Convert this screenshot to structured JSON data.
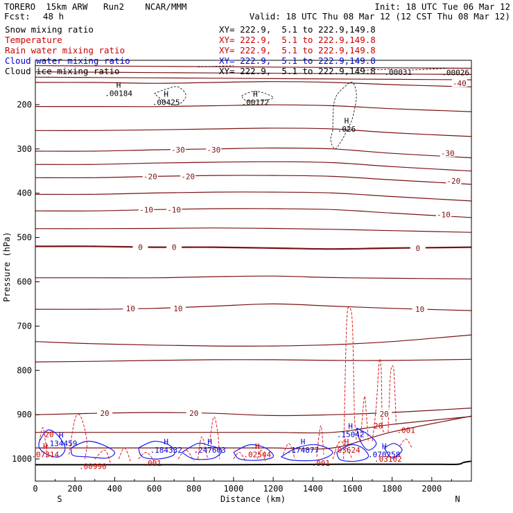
{
  "header": {
    "model": "TORERO  15km ARW   Run2    NCAR/MMM",
    "init": "Init: 18 UTC Tue 06 Mar 12",
    "fcst_label": "Fcst:",
    "fcst_value": "48 h",
    "valid": "Valid: 18 UTC Thu 08 Mar 12 (12 CST Thu 08 Mar 12)"
  },
  "legend": [
    {
      "label": "Snow mixing ratio",
      "xy": "XY= 222.9,  5.1 to 222.9,149.8",
      "color": "#000000"
    },
    {
      "label": "Temperature",
      "xy": "XY= 222.9,  5.1 to 222.9,149.8",
      "color": "#cc0000"
    },
    {
      "label": "Rain water mixing ratio",
      "xy": "XY= 222.9,  5.1 to 222.9,149.8",
      "color": "#cc0000"
    },
    {
      "label": "Cloud water mixing ratio",
      "xy": "XY= 222.9,  5.1 to 222.9,149.8",
      "color": "#0000cc"
    },
    {
      "label": "Cloud ice mixing ratio",
      "xy": "XY= 222.9,  5.1 to 222.9,149.8",
      "color": "#000000"
    }
  ],
  "chart_data": {
    "type": "line",
    "title": "Vertical cross section",
    "xlabel": "Distance (km)",
    "ylabel": "Pressure (hPa)",
    "xlim": [
      0,
      2200
    ],
    "ylim": [
      1050,
      100
    ],
    "x_ticks": [
      0,
      200,
      400,
      600,
      800,
      1000,
      1200,
      1400,
      1600,
      1800,
      2000
    ],
    "x_tick_labels": [
      "0",
      "200",
      "400",
      "600",
      "800",
      "1000",
      "1200",
      "1400",
      "1600",
      "1800",
      "2000"
    ],
    "y_ticks": [
      200,
      300,
      400,
      500,
      600,
      700,
      800,
      900,
      1000
    ],
    "y_tick_labels": [
      "200",
      "300",
      "400",
      "500",
      "600",
      "700",
      "800",
      "900",
      "1000"
    ],
    "direction_labels": {
      "left": "S",
      "right": "N"
    },
    "temperature_isotherms": [
      {
        "label": "-40",
        "pressure": [
          150,
          150,
          152,
          150,
          148,
          150,
          155,
          160
        ]
      },
      {
        "label": "-30",
        "pressure": [
          305,
          305,
          302,
          300,
          298,
          300,
          310,
          320
        ]
      },
      {
        "label": "-20",
        "pressure": [
          365,
          365,
          362,
          360,
          360,
          362,
          370,
          380
        ]
      },
      {
        "label": "-10",
        "pressure": [
          440,
          440,
          437,
          435,
          435,
          437,
          445,
          455
        ]
      },
      {
        "label": "0",
        "pressure": [
          520,
          520,
          522,
          522,
          524,
          526,
          524,
          522
        ]
      },
      {
        "label": "10",
        "pressure": [
          662,
          662,
          660,
          655,
          650,
          655,
          660,
          665
        ]
      },
      {
        "label": "20",
        "pressure": [
          900,
          897,
          895,
          897,
          902,
          900,
          895,
          885
        ]
      }
    ],
    "isotherm_x": [
      0,
      300,
      600,
      900,
      1200,
      1500,
      1800,
      2200
    ],
    "temperature_labels": [
      {
        "text": "-40",
        "x": 2140,
        "p": 152
      },
      {
        "text": "-30",
        "x": 720,
        "p": 302
      },
      {
        "text": "-30",
        "x": 900,
        "p": 302
      },
      {
        "text": "-30",
        "x": 2080,
        "p": 310
      },
      {
        "text": "-20",
        "x": 580,
        "p": 362
      },
      {
        "text": "-20",
        "x": 770,
        "p": 362
      },
      {
        "text": "-20",
        "x": 2110,
        "p": 372
      },
      {
        "text": "-10",
        "x": 560,
        "p": 437
      },
      {
        "text": "-10",
        "x": 700,
        "p": 437
      },
      {
        "text": "-10",
        "x": 2060,
        "p": 448
      },
      {
        "text": "0",
        "x": 530,
        "p": 522
      },
      {
        "text": "0",
        "x": 700,
        "p": 522
      },
      {
        "text": "0",
        "x": 1930,
        "p": 524
      },
      {
        "text": "10",
        "x": 480,
        "p": 660
      },
      {
        "text": "10",
        "x": 720,
        "p": 660
      },
      {
        "text": "10",
        "x": 1940,
        "p": 662
      },
      {
        "text": "20",
        "x": 350,
        "p": 897
      },
      {
        "text": "20",
        "x": 800,
        "p": 897
      },
      {
        "text": "20",
        "x": 1760,
        "p": 898
      }
    ],
    "maxima_labels": [
      {
        "marker": "H",
        "value": ".00184",
        "x": 420,
        "p": 170,
        "color": "#000000"
      },
      {
        "marker": "H",
        "value": ".00425",
        "x": 660,
        "p": 190,
        "color": "#000000"
      },
      {
        "marker": "H",
        "value": ".00172",
        "x": 1110,
        "p": 190,
        "color": "#000000"
      },
      {
        "marker": "H",
        "value": ".026",
        "x": 1570,
        "p": 250,
        "color": "#000000"
      },
      {
        "marker": "",
        "value": ".00031",
        "x": 1830,
        "p": 122,
        "color": "#000000"
      },
      {
        "marker": "",
        "value": ".00026",
        "x": 2120,
        "p": 123,
        "color": "#000000"
      },
      {
        "marker": "H",
        "value": ".15042",
        "x": 1590,
        "p": 940,
        "color": "#0000cc"
      },
      {
        "marker": "H",
        "value": ".134459",
        "x": 130,
        "p": 960,
        "color": "#0000cc"
      },
      {
        "marker": "H",
        "value": ".184332",
        "x": 660,
        "p": 975,
        "color": "#0000cc"
      },
      {
        "marker": "H",
        "value": ".247663",
        "x": 880,
        "p": 975,
        "color": "#0000cc"
      },
      {
        "marker": "H",
        "value": ".174877",
        "x": 1350,
        "p": 975,
        "color": "#0000cc"
      },
      {
        "marker": "H",
        "value": ".070258",
        "x": 1760,
        "p": 985,
        "color": "#0000cc"
      },
      {
        "marker": "H",
        "value": ".07314",
        "x": 50,
        "p": 985,
        "color": "#cc0000"
      },
      {
        "marker": "H",
        "value": ".02544",
        "x": 1120,
        "p": 985,
        "color": "#cc0000"
      },
      {
        "marker": "H",
        "value": ".03624",
        "x": 1570,
        "p": 975,
        "color": "#cc0000"
      },
      {
        "marker": "",
        "value": ".03102",
        "x": 1780,
        "p": 995,
        "color": "#cc0000"
      },
      {
        "marker": "",
        "value": ".00990",
        "x": 290,
        "p": 1012,
        "color": "#cc0000"
      },
      {
        "marker": "",
        "value": ".001",
        "x": 590,
        "p": 1005,
        "color": "#cc0000"
      },
      {
        "marker": "",
        "value": ".001",
        "x": 1440,
        "p": 1005,
        "color": "#cc0000"
      },
      {
        "marker": "",
        "value": ".001",
        "x": 1870,
        "p": 930,
        "color": "#cc0000"
      },
      {
        "marker": "",
        "value": "20",
        "x": 70,
        "p": 940,
        "color": "#cc0000"
      },
      {
        "marker": "",
        "value": "20",
        "x": 1730,
        "p": 920,
        "color": "#cc0000"
      }
    ]
  },
  "colors": {
    "isotherm": "#7a1010",
    "isotherm_zero": "#7a1010",
    "rain": "#dd2020",
    "cloud_water": "#1a1aee",
    "snow": "#000000",
    "ground": "#000000"
  }
}
